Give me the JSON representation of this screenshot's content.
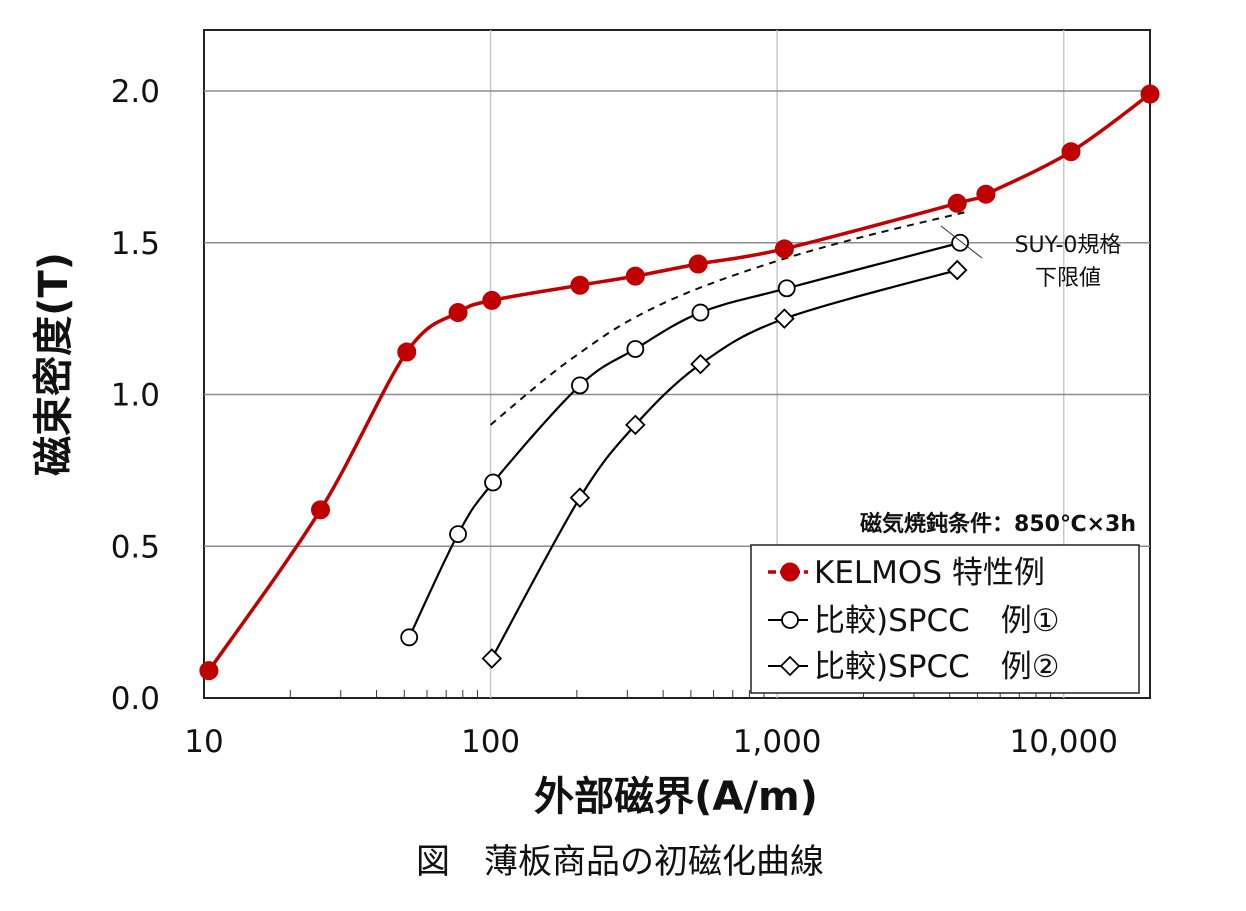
{
  "chart_data": {
    "type": "line",
    "title": "",
    "caption": "図　薄板商品の初磁化曲線",
    "xlabel": "外部磁界(A/m)",
    "ylabel": "磁束密度(T)",
    "xscale": "log",
    "xlim": [
      10,
      20000
    ],
    "ylim": [
      0,
      2.2
    ],
    "xticks": [
      10,
      100,
      1000,
      10000
    ],
    "xtick_labels": [
      "10",
      "100",
      "1,000",
      "10,000"
    ],
    "yticks": [
      0,
      0.5,
      1.0,
      1.5,
      2.0
    ],
    "ytick_labels": [
      "0.0",
      "0.5",
      "1.0",
      "1.5",
      "2.0"
    ],
    "grid": true,
    "annotation": "磁気焼鈍条件：850℃×3h",
    "reference": {
      "label_line1": "SUY-0規格",
      "label_line2": "下限値",
      "x": [
        100,
        150,
        200,
        300,
        500,
        1000,
        2000,
        4500
      ],
      "y": [
        0.9,
        1.04,
        1.13,
        1.24,
        1.34,
        1.44,
        1.52,
        1.6
      ]
    },
    "legend_position": "bottom-right",
    "series": [
      {
        "name": "KELMOS 特性例",
        "color": "#c00000",
        "marker": "filled-circle",
        "x": [
          10.4,
          25.5,
          51,
          77,
          101,
          205,
          320,
          530,
          1060,
          4250,
          5350,
          10600,
          20000
        ],
        "y": [
          0.09,
          0.62,
          1.14,
          1.27,
          1.31,
          1.36,
          1.39,
          1.43,
          1.48,
          1.63,
          1.66,
          1.8,
          1.99
        ]
      },
      {
        "name": "比較)SPCC　例①",
        "color": "#000000",
        "marker": "open-circle",
        "x": [
          52,
          77,
          102,
          205,
          320,
          540,
          1080,
          4350
        ],
        "y": [
          0.2,
          0.54,
          0.71,
          1.03,
          1.15,
          1.27,
          1.35,
          1.5
        ]
      },
      {
        "name": "比較)SPCC　例②",
        "color": "#000000",
        "marker": "open-diamond",
        "x": [
          101,
          205,
          320,
          540,
          1060,
          4250
        ],
        "y": [
          0.13,
          0.66,
          0.9,
          1.1,
          1.25,
          1.41
        ]
      }
    ]
  }
}
